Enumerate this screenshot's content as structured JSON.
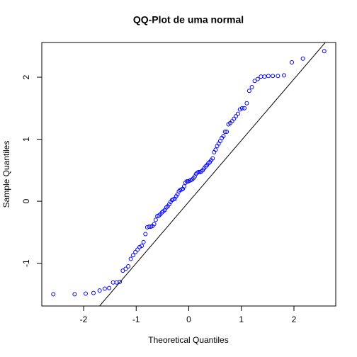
{
  "chart_data": {
    "type": "scatter",
    "title": "QQ-Plot de uma normal",
    "x_label": "Theoretical Quantiles",
    "y_label": "Sample Quantiles",
    "color": "#0000ff",
    "xlim": [
      -2.795,
      2.795
    ],
    "ylim": [
      -1.69,
      2.56
    ],
    "xticks": [
      -2,
      -1,
      0,
      1,
      2
    ],
    "yticks": [
      -1,
      0,
      1,
      2
    ],
    "qqline": {
      "intercept": -0.01,
      "slope": 0.99
    },
    "x": [
      -2.576,
      -2.17,
      -1.96,
      -1.812,
      -1.695,
      -1.598,
      -1.514,
      -1.44,
      -1.372,
      -1.311,
      -1.254,
      -1.2,
      -1.15,
      -1.103,
      -1.058,
      -1.015,
      -0.974,
      -0.935,
      -0.896,
      -0.86,
      -0.824,
      -0.789,
      -0.755,
      -0.722,
      -0.69,
      -0.659,
      -0.628,
      -0.598,
      -0.568,
      -0.539,
      -0.51,
      -0.482,
      -0.454,
      -0.426,
      -0.399,
      -0.372,
      -0.345,
      -0.319,
      -0.292,
      -0.266,
      -0.24,
      -0.215,
      -0.189,
      -0.164,
      -0.138,
      -0.113,
      -0.088,
      -0.063,
      -0.038,
      -0.013,
      0.013,
      0.038,
      0.063,
      0.088,
      0.113,
      0.138,
      0.164,
      0.189,
      0.215,
      0.24,
      0.266,
      0.292,
      0.319,
      0.345,
      0.372,
      0.399,
      0.426,
      0.454,
      0.482,
      0.51,
      0.539,
      0.568,
      0.598,
      0.628,
      0.659,
      0.69,
      0.722,
      0.755,
      0.789,
      0.824,
      0.86,
      0.896,
      0.935,
      0.974,
      1.015,
      1.058,
      1.103,
      1.15,
      1.2,
      1.254,
      1.311,
      1.372,
      1.44,
      1.514,
      1.598,
      1.695,
      1.812,
      1.96,
      2.17,
      2.576
    ],
    "values": [
      -1.5,
      -1.5,
      -1.49,
      -1.48,
      -1.44,
      -1.41,
      -1.4,
      -1.31,
      -1.31,
      -1.3,
      -1.12,
      -1.09,
      -1.05,
      -0.93,
      -0.87,
      -0.82,
      -0.78,
      -0.74,
      -0.72,
      -0.66,
      -0.53,
      -0.42,
      -0.41,
      -0.41,
      -0.4,
      -0.37,
      -0.3,
      -0.24,
      -0.23,
      -0.21,
      -0.18,
      -0.16,
      -0.14,
      -0.1,
      -0.08,
      -0.05,
      -0.01,
      0.02,
      0.03,
      0.04,
      0.08,
      0.11,
      0.16,
      0.18,
      0.19,
      0.2,
      0.24,
      0.3,
      0.32,
      0.32,
      0.33,
      0.34,
      0.35,
      0.37,
      0.4,
      0.44,
      0.46,
      0.47,
      0.47,
      0.48,
      0.5,
      0.53,
      0.56,
      0.58,
      0.61,
      0.63,
      0.66,
      0.69,
      0.79,
      0.83,
      0.89,
      0.93,
      0.97,
      1.02,
      1.05,
      1.12,
      1.12,
      1.24,
      1.26,
      1.29,
      1.33,
      1.37,
      1.41,
      1.48,
      1.5,
      1.5,
      1.58,
      1.78,
      1.84,
      1.94,
      1.97,
      2.01,
      2.01,
      2.02,
      2.02,
      2.02,
      2.03,
      2.24,
      2.3,
      2.42
    ]
  }
}
